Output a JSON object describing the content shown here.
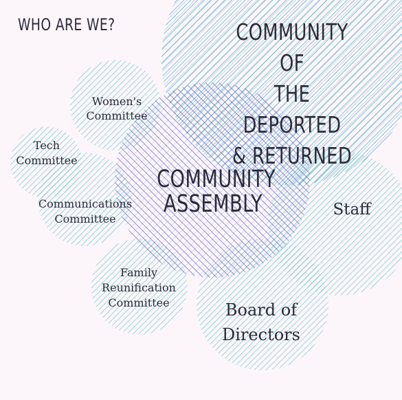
{
  "title": "WHO ARE WE?",
  "circles": {
    "community": [
      "COMMUNITY OF",
      "THE DEPORTED",
      "& RETURNED"
    ],
    "assembly": [
      "COMMUNITY",
      "ASSEMBLY"
    ],
    "staff": [
      "Staff"
    ],
    "board": [
      "Board of",
      "Directors"
    ],
    "womens": [
      "Women's",
      "Committee"
    ],
    "tech": [
      "Tech",
      "Committee"
    ],
    "communications": [
      "Communications",
      "Committee"
    ],
    "family": [
      "Family",
      "Reunification",
      "Committee"
    ]
  },
  "colors": {
    "background": "#fcf6fb",
    "teal": "#44b9b7",
    "blue": "#4a86cf",
    "purple": "#6a5fc4",
    "text": "#2b2b3a"
  }
}
